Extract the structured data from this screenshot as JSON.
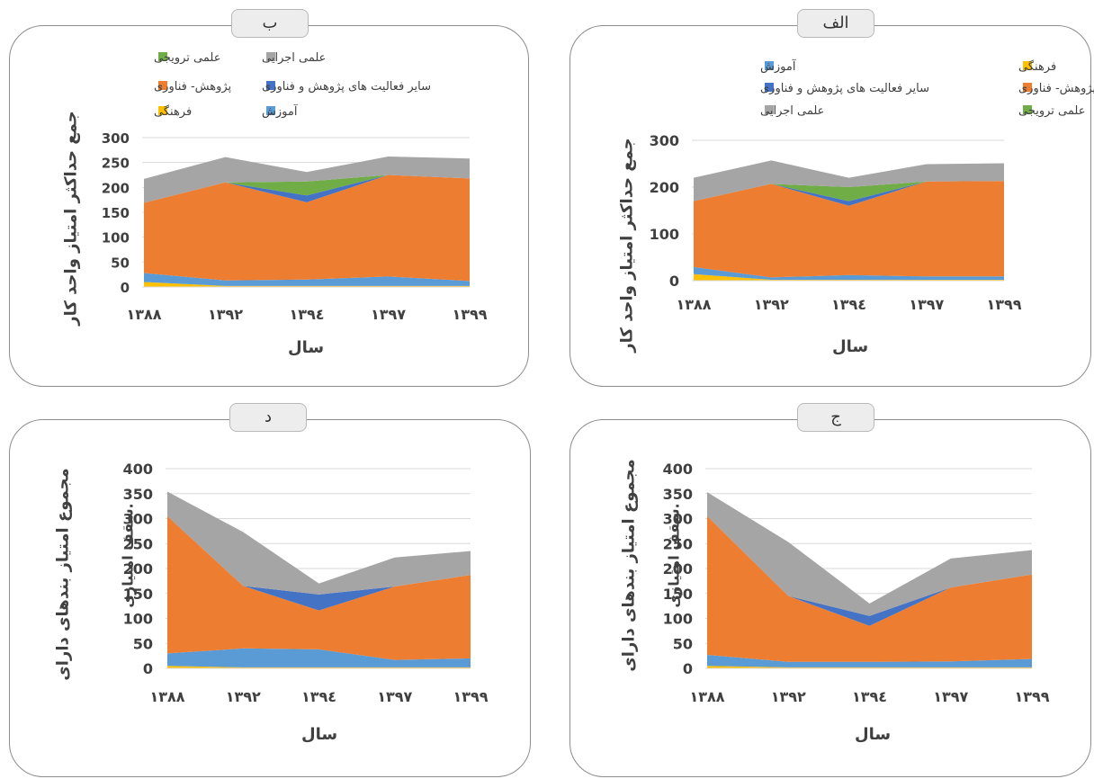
{
  "panels": {
    "b": {
      "tab_label": "ب"
    },
    "a": {
      "tab_label": "الف"
    },
    "d": {
      "tab_label": "د"
    },
    "c": {
      "tab_label": "ج"
    }
  },
  "colors": {
    "farhangi": "#ffc000",
    "amoozesh": "#5b9bd5",
    "pajohesh": "#ed7d31",
    "sayer": "#4472c4",
    "tarviji": "#70ad47",
    "ejraei": "#a5a5a5"
  },
  "chart_data": [
    {
      "panel": "b",
      "type": "area",
      "stacked": true,
      "categories": [
        "۱۳۸۸",
        "۱۳۹۲",
        "۱۳۹٤",
        "۱۳۹۷",
        "۱۳۹۹"
      ],
      "xlabel": "سال",
      "ylabel": "جمع حداکثر امتیاز واحد کار",
      "ylabel2": "",
      "ylim": [
        0,
        300
      ],
      "yticks": [
        "0",
        "50",
        "100",
        "150",
        "200",
        "250",
        "300"
      ],
      "grid": true,
      "legend_position": "top",
      "legend": [
        {
          "key": "ejraei",
          "label": "علمی اجرایی"
        },
        {
          "key": "tarviji",
          "label": "علمی ترویجی"
        },
        {
          "key": "sayer",
          "label": "سایر فعالیت های پژوهش و فناوری"
        },
        {
          "key": "pajohesh",
          "label": "پژوهش- فناوری"
        },
        {
          "key": "amoozesh",
          "label": "آموزش"
        },
        {
          "key": "farhangi",
          "label": "فرهنگی"
        }
      ],
      "series": [
        {
          "key": "farhangi",
          "name": "فرهنگی",
          "values": [
            10,
            2,
            2,
            2,
            2
          ]
        },
        {
          "key": "amoozesh",
          "name": "آموزش",
          "values": [
            18,
            11,
            13,
            19,
            10
          ]
        },
        {
          "key": "pajohesh",
          "name": "پژوهش- فناوری",
          "values": [
            141,
            197,
            155,
            204,
            206
          ]
        },
        {
          "key": "sayer",
          "name": "سایر فعالیت های پژوهش و فناوری",
          "values": [
            0,
            0,
            14,
            0,
            0
          ]
        },
        {
          "key": "tarviji",
          "name": "علمی ترویجی",
          "values": [
            0,
            0,
            28,
            0,
            0
          ]
        },
        {
          "key": "ejraei",
          "name": "علمی اجرایی",
          "values": [
            48,
            51,
            19,
            37,
            40
          ]
        }
      ]
    },
    {
      "panel": "a",
      "type": "area",
      "stacked": true,
      "categories": [
        "۱۳۸۸",
        "۱۳۹۲",
        "۱۳۹٤",
        "۱۳۹۷",
        "۱۳۹۹"
      ],
      "xlabel": "سال",
      "ylabel": "جمع حداکثر امتیاز واحد کار",
      "ylabel2": "",
      "ylim": [
        0,
        300
      ],
      "yticks": [
        "0",
        "100",
        "200",
        "300"
      ],
      "grid": true,
      "legend_position": "top",
      "legend": [
        {
          "key": "farhangi",
          "label": "فرهنگی"
        },
        {
          "key": "amoozesh",
          "label": "آموزش"
        },
        {
          "key": "pajohesh",
          "label": "پژوهش- فناوری"
        },
        {
          "key": "sayer",
          "label": "سایر فعالیت های پژوهش و فناوری"
        },
        {
          "key": "tarviji",
          "label": "علمی ترویجی"
        },
        {
          "key": "ejraei",
          "label": "علمی اجرایی"
        }
      ],
      "series": [
        {
          "key": "farhangi",
          "name": "فرهنگی",
          "values": [
            14,
            2,
            2,
            2,
            2
          ]
        },
        {
          "key": "amoozesh",
          "name": "آموزش",
          "values": [
            15,
            5,
            10,
            7,
            7
          ]
        },
        {
          "key": "pajohesh",
          "name": "پژوهش- فناوری",
          "values": [
            141,
            200,
            148,
            203,
            204
          ]
        },
        {
          "key": "sayer",
          "name": "سایر فعالیت های پژوهش و فناوری",
          "values": [
            0,
            0,
            10,
            0,
            0
          ]
        },
        {
          "key": "tarviji",
          "name": "علمی ترویجی",
          "values": [
            0,
            0,
            30,
            0,
            0
          ]
        },
        {
          "key": "ejraei",
          "name": "علمی اجرایی",
          "values": [
            50,
            50,
            20,
            37,
            38
          ]
        }
      ]
    },
    {
      "panel": "d",
      "type": "area",
      "stacked": true,
      "categories": [
        "۱۳۸۸",
        "۱۳۹۲",
        "۱۳۹٤",
        "۱۳۹۷",
        "۱۳۹۹"
      ],
      "xlabel": "سال",
      "ylabel": "مجموع امتیاز بندهای دارای",
      "ylabel2": "سقف امتیازی.",
      "ylim": [
        0,
        400
      ],
      "yticks": [
        "0",
        "50",
        "100",
        "150",
        "200",
        "250",
        "300",
        "350",
        "400"
      ],
      "grid": true,
      "series": [
        {
          "key": "farhangi",
          "name": "فرهنگی",
          "values": [
            5,
            2,
            2,
            2,
            2
          ]
        },
        {
          "key": "amoozesh",
          "name": "آموزش",
          "values": [
            25,
            38,
            36,
            15,
            18
          ]
        },
        {
          "key": "pajohesh",
          "name": "پژوهش- فناوری",
          "values": [
            275,
            125,
            78,
            147,
            167
          ]
        },
        {
          "key": "sayer",
          "name": "سایر فعالیت های پژوهش و فناوری",
          "values": [
            0,
            0,
            32,
            0,
            0
          ]
        },
        {
          "key": "tarviji",
          "name": "علمی ترویجی",
          "values": [
            0,
            0,
            0,
            0,
            0
          ]
        },
        {
          "key": "ejraei",
          "name": "علمی اجرایی",
          "values": [
            49,
            108,
            22,
            58,
            48
          ]
        }
      ]
    },
    {
      "panel": "c",
      "type": "area",
      "stacked": true,
      "categories": [
        "۱۳۸۸",
        "۱۳۹۲",
        "۱۳۹٤",
        "۱۳۹۷",
        "۱۳۹۹"
      ],
      "xlabel": "سال",
      "ylabel": "مجموع امتیاز بندهای دارای",
      "ylabel2": "سقف امتیازی.",
      "ylim": [
        0,
        400
      ],
      "yticks": [
        "0",
        "50",
        "100",
        "150",
        "200",
        "250",
        "300",
        "350",
        "400"
      ],
      "grid": true,
      "series": [
        {
          "key": "farhangi",
          "name": "فرهنگی",
          "values": [
            5,
            2,
            2,
            2,
            2
          ]
        },
        {
          "key": "amoozesh",
          "name": "آموزش",
          "values": [
            22,
            11,
            11,
            12,
            17
          ]
        },
        {
          "key": "pajohesh",
          "name": "پژوهش- فناوری",
          "values": [
            278,
            132,
            72,
            148,
            169
          ]
        },
        {
          "key": "sayer",
          "name": "سایر فعالیت های پژوهش و فناوری",
          "values": [
            0,
            0,
            20,
            0,
            0
          ]
        },
        {
          "key": "tarviji",
          "name": "علمی ترویجی",
          "values": [
            0,
            0,
            0,
            0,
            0
          ]
        },
        {
          "key": "ejraei",
          "name": "علمی اجرایی",
          "values": [
            48,
            108,
            25,
            58,
            49
          ]
        }
      ]
    }
  ]
}
